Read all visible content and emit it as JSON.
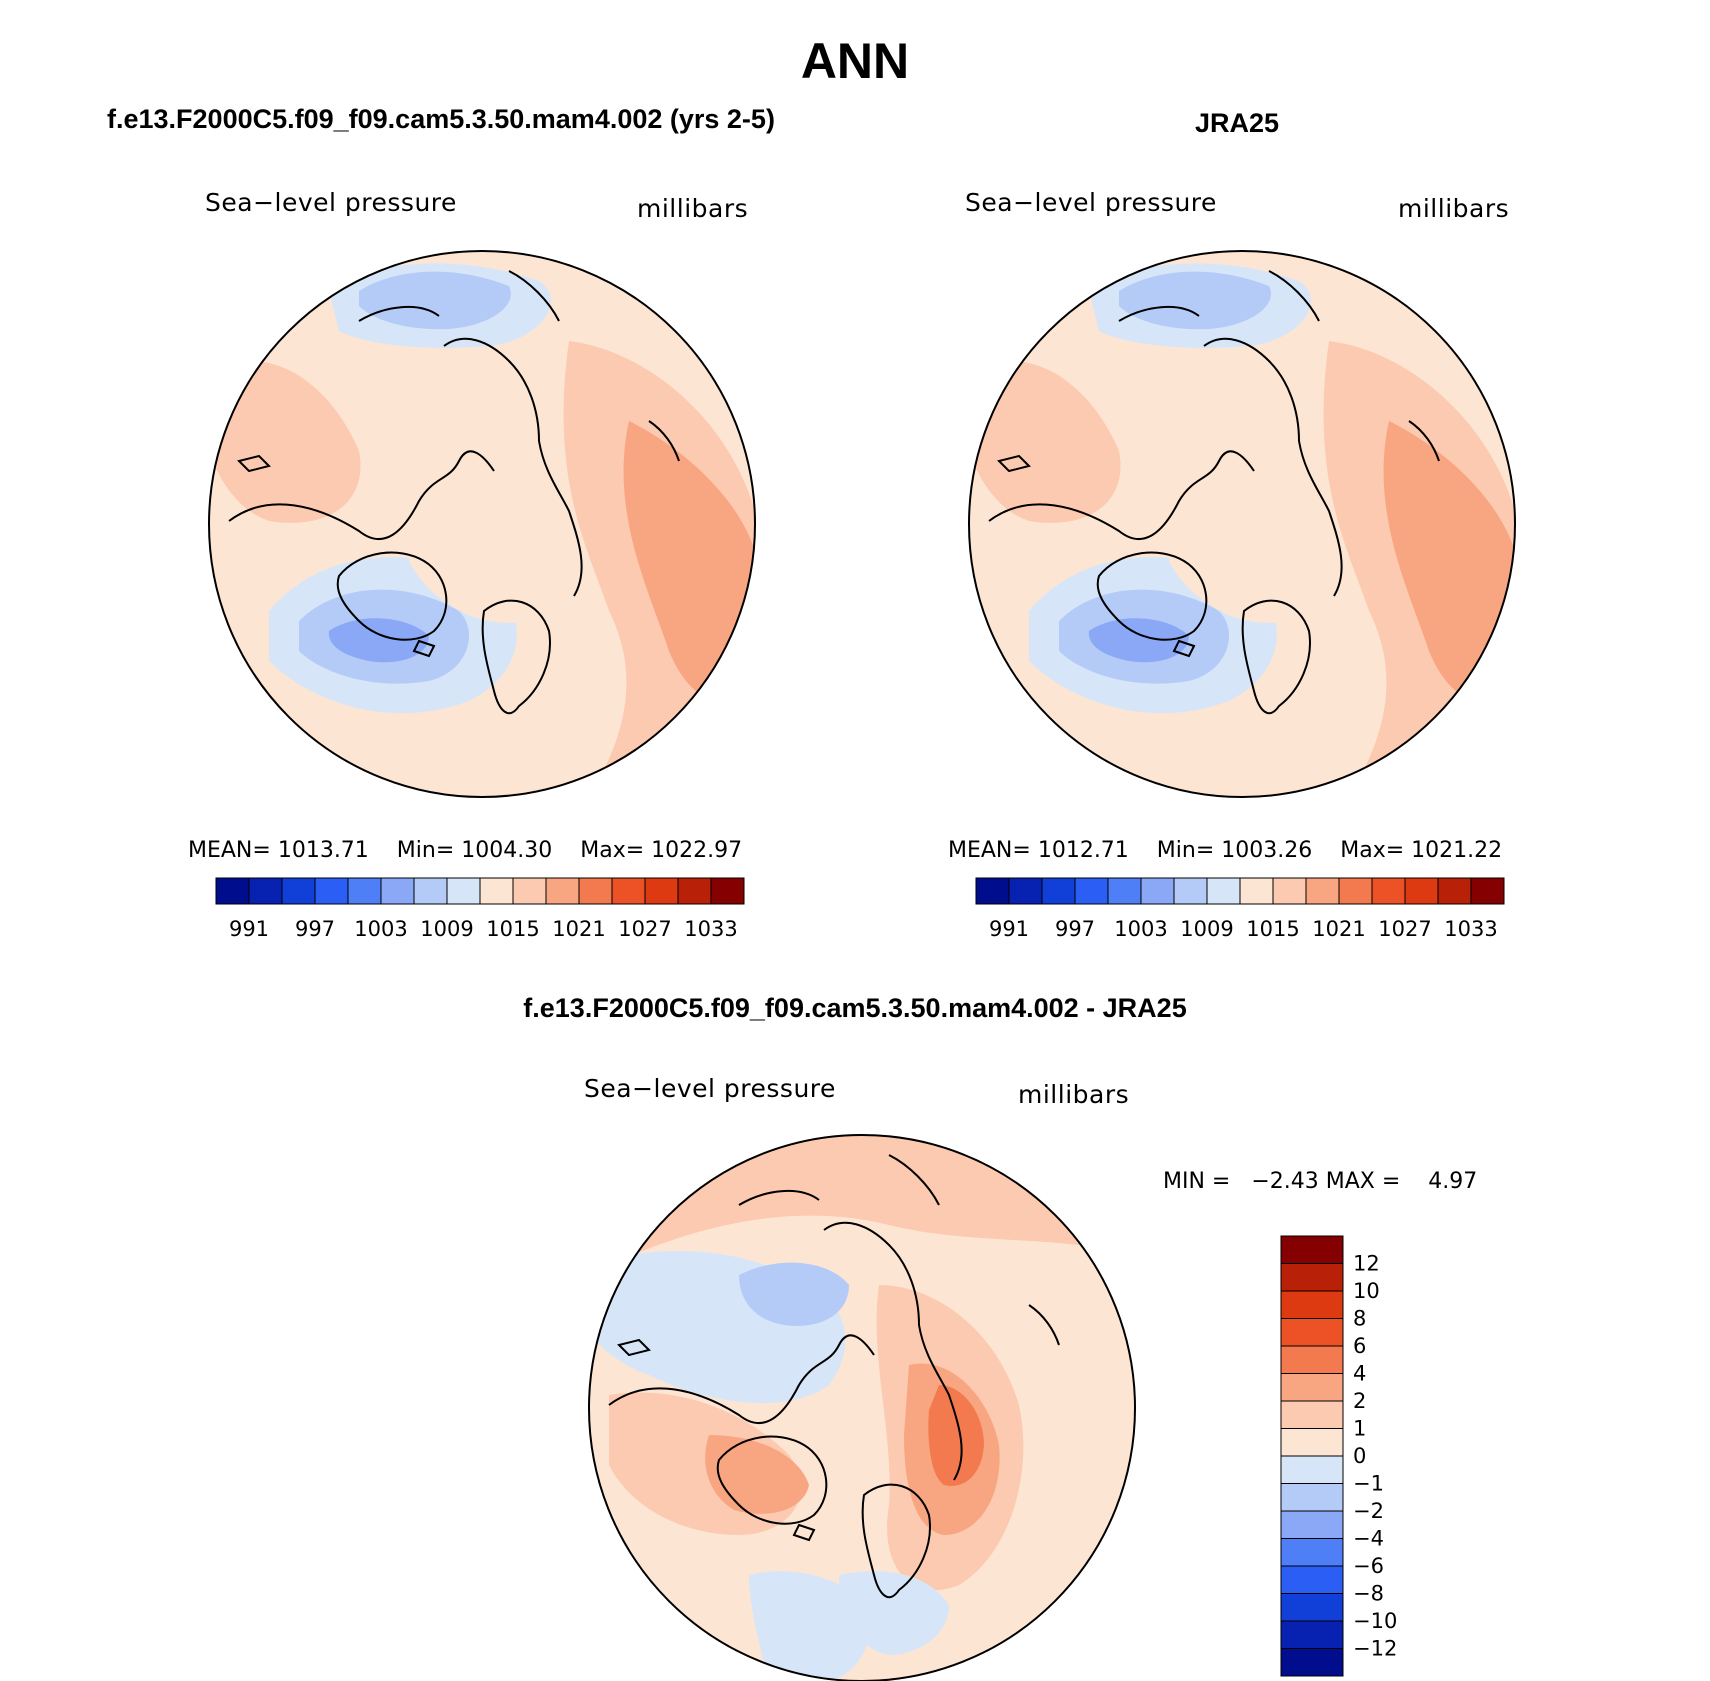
{
  "figure": {
    "title": "ANN",
    "panels": [
      {
        "id": "model",
        "title": "f.e13.F2000C5.f09_f09.cam5.3.50.mam4.002 (yrs 2-5)",
        "variable": "Sea−level pressure",
        "units": "millibars",
        "stats": {
          "mean_label": "MEAN=",
          "mean": "1013.71",
          "min_label": "Min=",
          "min": "1004.30",
          "max_label": "Max=",
          "max": "1022.97"
        }
      },
      {
        "id": "obs",
        "title": "JRA25",
        "variable": "Sea−level pressure",
        "units": "millibars",
        "stats": {
          "mean_label": "MEAN=",
          "mean": "1012.71",
          "min_label": "Min=",
          "min": "1003.26",
          "max_label": "Max=",
          "max": "1021.22"
        }
      },
      {
        "id": "diff",
        "title": "f.e13.F2000C5.f09_f09.cam5.3.50.mam4.002 - JRA25",
        "variable": "Sea−level pressure",
        "units": "millibars",
        "stats": {
          "min_label": "MIN =",
          "min": "−2.43",
          "max_label": "MAX =",
          "max": "4.97"
        }
      }
    ]
  },
  "colorbars": {
    "absolute": {
      "colors": [
        "#000d8c",
        "#0722b0",
        "#1040d8",
        "#2a5ef5",
        "#4f7ff6",
        "#8aa8f6",
        "#b4cbf8",
        "#d6e6f8",
        "#fde5d4",
        "#fccab0",
        "#f8a682",
        "#f37a4e",
        "#ec5226",
        "#de3a12",
        "#b82008",
        "#850000"
      ],
      "labels": [
        "991",
        "997",
        "1003",
        "1009",
        "1015",
        "1021",
        "1027",
        "1033"
      ]
    },
    "difference": {
      "colors_top_to_bottom": [
        "#850000",
        "#b82008",
        "#de3a12",
        "#ec5226",
        "#f37a4e",
        "#f8a682",
        "#fccab0",
        "#fde5d4",
        "#d6e6f8",
        "#b4cbf8",
        "#8aa8f6",
        "#4f7ff6",
        "#2a5ef5",
        "#1040d8",
        "#0722b0",
        "#000d8c"
      ],
      "labels_top_to_bottom": [
        "12",
        "10",
        "8",
        "6",
        "4",
        "2",
        "1",
        "0",
        "−1",
        "−2",
        "−4",
        "−6",
        "−8",
        "−10",
        "−12"
      ]
    }
  },
  "chart_data": {
    "type": "contour-map",
    "projection": "polar stereographic (North Pole)",
    "variable": "Sea−level pressure",
    "units": "millibars",
    "season": "ANN",
    "panels": [
      {
        "name": "f.e13.F2000C5.f09_f09.cam5.3.50.mam4.002 (yrs 2-5)",
        "mean": 1013.71,
        "min": 1004.3,
        "max": 1022.97,
        "contour_levels": [
          991,
          994,
          997,
          1000,
          1003,
          1006,
          1009,
          1012,
          1015,
          1018,
          1021,
          1024,
          1027,
          1030,
          1033
        ]
      },
      {
        "name": "JRA25",
        "mean": 1012.71,
        "min": 1003.26,
        "max": 1021.22,
        "contour_levels": [
          991,
          994,
          997,
          1000,
          1003,
          1006,
          1009,
          1012,
          1015,
          1018,
          1021,
          1024,
          1027,
          1030,
          1033
        ]
      },
      {
        "name": "f.e13.F2000C5.f09_f09.cam5.3.50.mam4.002 - JRA25",
        "min": -2.43,
        "max": 4.97,
        "contour_levels": [
          -12,
          -10,
          -8,
          -6,
          -4,
          -2,
          -1,
          0,
          1,
          2,
          4,
          6,
          8,
          10,
          12
        ]
      }
    ]
  }
}
